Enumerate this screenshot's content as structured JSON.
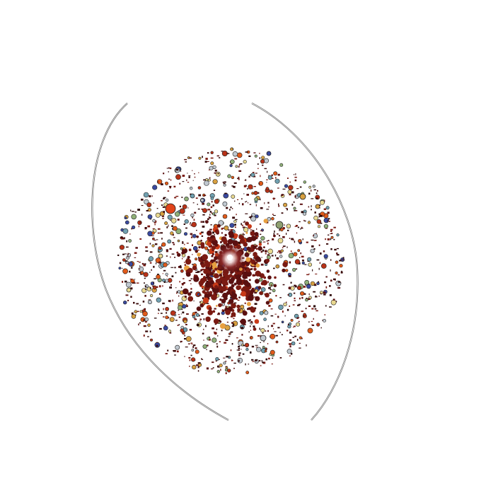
{
  "scene": {
    "background_color": "#ffffff",
    "outline_color": "#555555",
    "core_color": "#5a1414",
    "core_highlight_color": "#ffffff",
    "particle_palette": [
      "#3a0a0a",
      "#5a1010",
      "#7a1a12",
      "#2a0606",
      "#b83218",
      "#e05a1a",
      "#d8a040",
      "#e8d890",
      "#90b078",
      "#70a0b0",
      "#3a4aa0",
      "#c0c8d0"
    ],
    "description_icons": [
      "left-arc-outline",
      "right-arc-outline",
      "particle-cloud",
      "bright-core"
    ]
  }
}
